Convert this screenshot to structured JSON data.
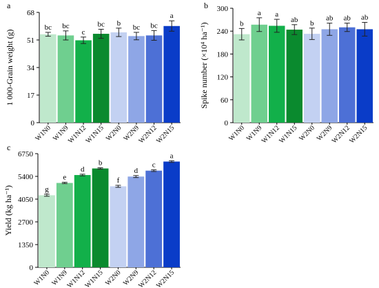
{
  "chart_data": [
    {
      "type": "bar",
      "panel_label": "a",
      "ylabel": "1 000-Grain weight (g)",
      "ylim": [
        0,
        68
      ],
      "yticks": [
        "0",
        "17",
        "34",
        "51",
        "68"
      ],
      "categories": [
        "W1N0",
        "W1N9",
        "W1N12",
        "W1N15",
        "W2N0",
        "W2N9",
        "W2N12",
        "W2N15"
      ],
      "values": [
        54.5,
        53.8,
        50.8,
        54.8,
        55.7,
        53.4,
        53.8,
        59.6
      ],
      "errors": [
        1.2,
        2.8,
        2.0,
        2.8,
        2.6,
        2.3,
        3.0,
        3.2
      ],
      "letters": [
        "bc",
        "bc",
        "c",
        "bc",
        "b",
        "bc",
        "bc",
        "a"
      ]
    },
    {
      "type": "bar",
      "panel_label": "b",
      "ylabel": "Spike number (×10⁴ ha⁻¹)",
      "ylim": [
        0,
        300
      ],
      "yticks": [
        "0",
        "60",
        "120",
        "180",
        "240",
        "300"
      ],
      "categories": [
        "W1N0",
        "W1N9",
        "W1N12",
        "W1N15",
        "W2N0",
        "W2N9",
        "W2N12",
        "W2N15"
      ],
      "values": [
        232,
        257,
        254,
        244,
        233,
        245,
        250,
        245
      ],
      "errors": [
        15,
        18,
        17,
        13,
        15,
        16,
        11,
        18
      ],
      "letters": [
        "b",
        "a",
        "a",
        "ab",
        "b",
        "ab",
        "ab",
        "ab"
      ]
    },
    {
      "type": "bar",
      "panel_label": "c",
      "ylabel": "Yield (kg ha⁻¹)",
      "ylim": [
        0,
        6750
      ],
      "yticks": [
        "0",
        "1350",
        "2700",
        "4050",
        "5400",
        "6750"
      ],
      "categories": [
        "W1N0",
        "W1N9",
        "W1N12",
        "W1N15",
        "W2N0",
        "W2N9",
        "W2N12",
        "W2N15"
      ],
      "values": [
        4280,
        5010,
        5480,
        5870,
        4810,
        5390,
        5740,
        6280
      ],
      "errors": [
        60,
        40,
        50,
        40,
        60,
        60,
        50,
        50
      ],
      "letters": [
        "g",
        "e",
        "d",
        "b",
        "f",
        "d",
        "c",
        "a"
      ]
    }
  ],
  "colors": [
    "#bfe8cc",
    "#6fcf8f",
    "#12b04a",
    "#0a8a2e",
    "#c3d1f2",
    "#8ea6e6",
    "#4d70d6",
    "#0a3cc8"
  ]
}
